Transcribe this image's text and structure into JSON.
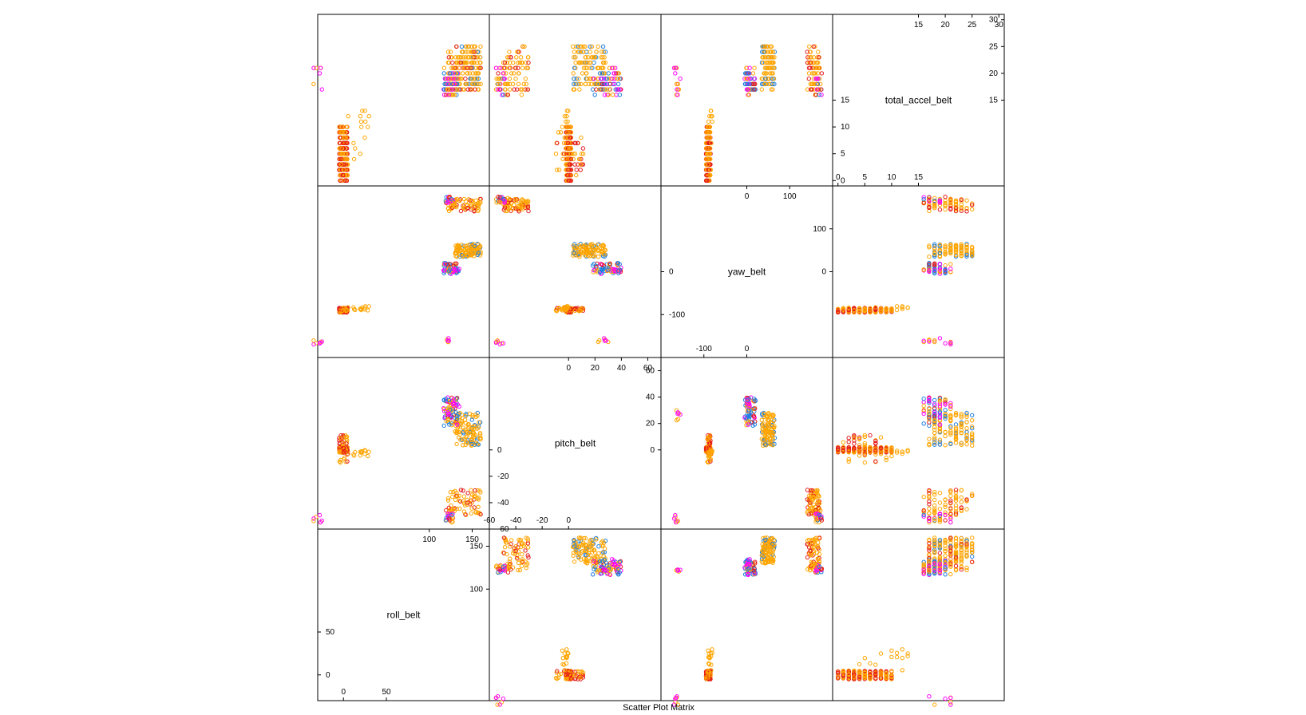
{
  "chart_data": {
    "type": "scatter",
    "subtype": "scatter-plot-matrix",
    "title": "Scatter Plot Matrix",
    "variables": [
      "roll_belt",
      "pitch_belt",
      "yaw_belt",
      "total_accel_belt"
    ],
    "ranges": {
      "roll_belt": [
        -30,
        170
      ],
      "pitch_belt": [
        -60,
        70
      ],
      "yaw_belt": [
        -200,
        200
      ],
      "total_accel_belt": [
        -1,
        31
      ]
    },
    "ticks": {
      "roll_belt": {
        "lower": [
          "0",
          "50"
        ],
        "upper": [
          "100",
          "150"
        ]
      },
      "pitch_belt": {
        "lower": [
          "-60",
          "-40",
          "-20",
          "0"
        ],
        "upper": [
          "0",
          "20",
          "40",
          "60"
        ]
      },
      "yaw_belt": {
        "lower": [
          "-100",
          "0"
        ],
        "upper": [
          "0",
          "100"
        ]
      },
      "total_accel_belt": {
        "lower": [
          "0",
          "5",
          "10",
          "15"
        ],
        "upper": [
          "15",
          "20",
          "25",
          "30"
        ]
      }
    },
    "class_colors": [
      "#e41a1c",
      "#ff00ff",
      "#1e7fe0",
      "#ffa500",
      "#ff6a00"
    ],
    "clusters": [
      {
        "roll": [
          -5,
          5
        ],
        "pitch": [
          -2,
          2
        ],
        "yaw": [
          -95,
          -85
        ],
        "accel": [
          0,
          10
        ],
        "share": 0.34,
        "colors": [
          0,
          0,
          3,
          3,
          3,
          4
        ]
      },
      {
        "roll": [
          -5,
          5
        ],
        "pitch": [
          -10,
          12
        ],
        "yaw": [
          -92,
          -84
        ],
        "accel": [
          1,
          9
        ],
        "share": 0.06,
        "colors": [
          3,
          3,
          0
        ]
      },
      {
        "roll": [
          130,
          160
        ],
        "pitch": [
          3,
          28
        ],
        "yaw": [
          35,
          65
        ],
        "accel": [
          17,
          25
        ],
        "share": 0.16,
        "colors": [
          3,
          3,
          3,
          2
        ]
      },
      {
        "roll": [
          116,
          135
        ],
        "pitch": [
          18,
          40
        ],
        "yaw": [
          -5,
          20
        ],
        "accel": [
          16,
          21
        ],
        "share": 0.08,
        "colors": [
          2,
          2,
          2,
          3,
          1,
          0
        ]
      },
      {
        "roll": [
          120,
          160
        ],
        "pitch": [
          -50,
          -30
        ],
        "yaw": [
          140,
          170
        ],
        "accel": [
          16,
          25
        ],
        "share": 0.1,
        "colors": [
          3,
          3,
          3,
          3,
          0
        ]
      },
      {
        "roll": [
          118,
          128
        ],
        "pitch": [
          -55,
          -45
        ],
        "yaw": [
          160,
          175
        ],
        "accel": [
          16,
          20
        ],
        "share": 0.03,
        "colors": [
          3,
          0,
          1,
          2
        ]
      },
      {
        "roll": [
          122,
          132
        ],
        "pitch": [
          28,
          38
        ],
        "yaw": [
          0,
          10
        ],
        "accel": [
          16,
          20
        ],
        "share": 0.02,
        "colors": [
          1,
          3,
          2
        ]
      },
      {
        "roll": [
          120,
          128
        ],
        "pitch": [
          22,
          30
        ],
        "yaw": [
          -165,
          -155
        ],
        "accel": [
          16,
          19
        ],
        "share": 0.01,
        "colors": [
          3,
          1
        ]
      },
      {
        "roll": [
          -35,
          -25
        ],
        "pitch": [
          -55,
          -48
        ],
        "yaw": [
          -170,
          -160
        ],
        "accel": [
          16,
          21
        ],
        "share": 0.01,
        "colors": [
          1,
          3
        ]
      },
      {
        "roll": [
          5,
          30
        ],
        "pitch": [
          -5,
          0
        ],
        "yaw": [
          -90,
          -80
        ],
        "accel": [
          4,
          14
        ],
        "share": 0.02,
        "colors": [
          3
        ]
      }
    ]
  }
}
